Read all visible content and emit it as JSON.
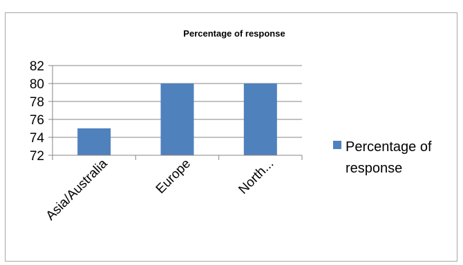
{
  "chart_data": {
    "type": "bar",
    "title": "Percentage of response",
    "categories": [
      "Asia/Australia",
      "Europe",
      "North..."
    ],
    "series": [
      {
        "name": "Percentage of response",
        "values": [
          75,
          80,
          80
        ]
      }
    ],
    "xlabel": "",
    "ylabel": "",
    "ylim": [
      72,
      82
    ],
    "yticks": [
      "72",
      "74",
      "76",
      "78",
      "80",
      "82"
    ],
    "grid": true,
    "legend_position": "right",
    "legend_label_lines": [
      "Percentage of",
      "response"
    ],
    "colors": {
      "bar": "#4f81bd",
      "grid": "#868686",
      "axis": "#868686",
      "frame": "#a6a6a6"
    }
  }
}
